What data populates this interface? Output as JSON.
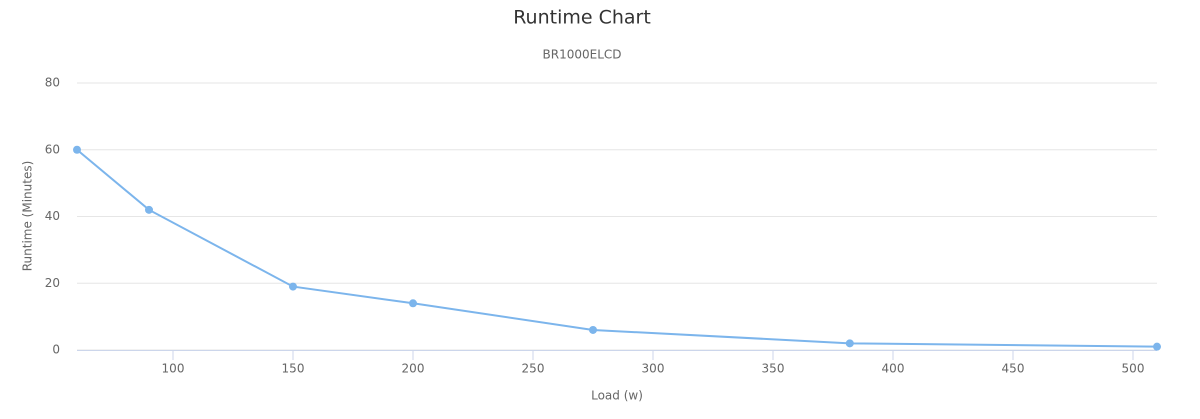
{
  "chart_data": {
    "type": "line",
    "title": "Runtime Chart",
    "subtitle": "BR1000ELCD",
    "x_label": "Load (w)",
    "y_label": "Runtime (Minutes)",
    "x": [
      60,
      90,
      150,
      200,
      275,
      382,
      510
    ],
    "values": [
      60,
      42,
      19,
      14,
      6,
      2,
      1
    ],
    "color": "#7cb5ec",
    "xlim": [
      60,
      510
    ],
    "xticks": [
      100,
      150,
      200,
      250,
      300,
      350,
      400,
      450,
      500
    ],
    "ylim": [
      0,
      80
    ],
    "yticks": [
      0,
      20,
      40,
      60,
      80
    ],
    "grid": true
  }
}
